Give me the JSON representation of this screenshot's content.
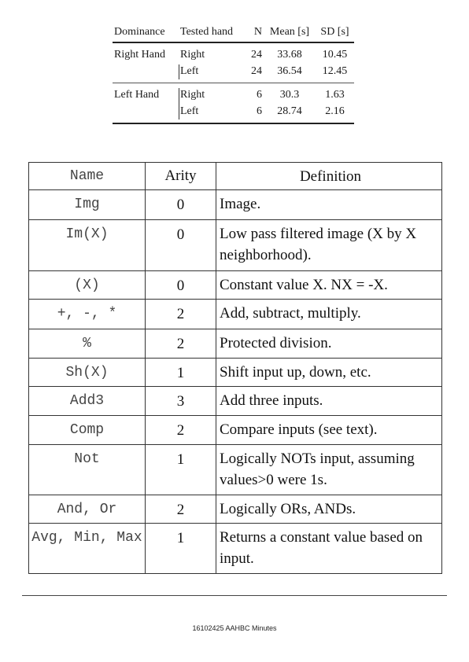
{
  "stats_table": {
    "headers": {
      "dominance": "Dominance",
      "tested_hand": "Tested hand",
      "n": "N",
      "mean": "Mean [s]",
      "sd": "SD [s]"
    },
    "rows": [
      {
        "dominance": "Right Hand",
        "tested_hand": "Right",
        "n": "24",
        "mean": "33.68",
        "sd": "10.45"
      },
      {
        "dominance": "",
        "tested_hand": "Left",
        "n": "24",
        "mean": "36.54",
        "sd": "12.45"
      },
      {
        "dominance": "Left Hand",
        "tested_hand": "Right",
        "n": "6",
        "mean": "30.3",
        "sd": "1.63"
      },
      {
        "dominance": "",
        "tested_hand": "Left",
        "n": "6",
        "mean": "28.74",
        "sd": "2.16"
      }
    ]
  },
  "defs_table": {
    "headers": {
      "name": "Name",
      "arity": "Arity",
      "definition": "Definition"
    },
    "rows": [
      {
        "name": "Img",
        "arity": "0",
        "definition": "Image."
      },
      {
        "name": "Im(X)",
        "arity": "0",
        "definition": "Low pass filtered image (X by X neighborhood)."
      },
      {
        "name": "(X)",
        "arity": "0",
        "definition": "Constant value X. NX = -X."
      },
      {
        "name": "+, -, *",
        "arity": "2",
        "definition": "Add, subtract, multiply."
      },
      {
        "name": "%",
        "arity": "2",
        "definition": "Protected division."
      },
      {
        "name": "Sh(X)",
        "arity": "1",
        "definition": "Shift input up, down, etc."
      },
      {
        "name": "Add3",
        "arity": "3",
        "definition": "Add three inputs."
      },
      {
        "name": "Comp",
        "arity": "2",
        "definition": "Compare inputs (see text)."
      },
      {
        "name": "Not",
        "arity": "1",
        "definition": "Logically NOTs input, assuming values>0 were 1s."
      },
      {
        "name": "And, Or",
        "arity": "2",
        "definition": "Logically ORs, ANDs."
      },
      {
        "name": "Avg, Min, Max",
        "arity": "1",
        "definition": "Returns a constant value based on input."
      }
    ]
  },
  "footer": {
    "text": "16102425 AAHBC Minutes"
  }
}
